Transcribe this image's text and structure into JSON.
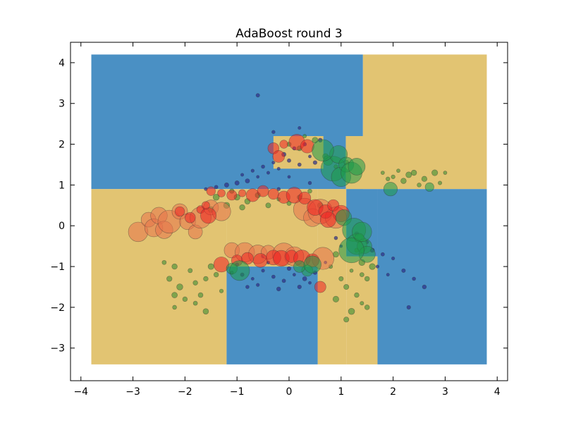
{
  "chart_data": {
    "type": "scatter",
    "title": "AdaBoost round 3",
    "xlabel": "",
    "ylabel": "",
    "xlim": [
      -4.2,
      4.2
    ],
    "ylim": [
      -3.8,
      4.5
    ],
    "xticks": [
      -4,
      -3,
      -2,
      -1,
      0,
      1,
      2,
      3,
      4
    ],
    "yticks": [
      -3,
      -2,
      -1,
      0,
      1,
      2,
      3,
      4
    ],
    "xtick_labels": [
      "−4",
      "−3",
      "−2",
      "−1",
      "0",
      "1",
      "2",
      "3",
      "4"
    ],
    "ytick_labels": [
      "−3",
      "−2",
      "−1",
      "0",
      "1",
      "2",
      "3",
      "4"
    ],
    "grid": false,
    "decision_regions": {
      "extent": {
        "x": [
          -3.8,
          3.8
        ],
        "y": [
          -3.4,
          4.2
        ]
      },
      "colors": {
        "blue": "#4a90c4",
        "yellow": "#e2c472"
      },
      "rects": [
        {
          "class": "blue",
          "x": [
            -3.8,
            1.42
          ],
          "y": [
            0.9,
            4.2
          ]
        },
        {
          "class": "yellow",
          "x": [
            1.42,
            3.8
          ],
          "y": [
            2.2,
            4.2
          ]
        },
        {
          "class": "yellow",
          "x": [
            1.09,
            3.8
          ],
          "y": [
            0.9,
            2.2
          ]
        },
        {
          "class": "yellow",
          "x": [
            -0.3,
            0.66
          ],
          "y": [
            1.4,
            2.2
          ]
        },
        {
          "class": "yellow",
          "x": [
            -3.8,
            -1.2
          ],
          "y": [
            -3.4,
            0.9
          ]
        },
        {
          "class": "yellow",
          "x": [
            -1.2,
            0.55
          ],
          "y": [
            -1.0,
            0.9
          ]
        },
        {
          "class": "yellow",
          "x": [
            0.55,
            1.1
          ],
          "y": [
            -3.4,
            0.9
          ]
        },
        {
          "class": "blue",
          "x": [
            -1.2,
            0.55
          ],
          "y": [
            -3.4,
            -1.0
          ]
        },
        {
          "class": "yellow",
          "x": [
            1.1,
            1.7
          ],
          "y": [
            -3.4,
            -0.75
          ]
        },
        {
          "class": "blue",
          "x": [
            1.7,
            3.8
          ],
          "y": [
            -3.4,
            0.9
          ]
        },
        {
          "class": "blue",
          "x": [
            1.1,
            1.7
          ],
          "y": [
            -0.75,
            0.9
          ]
        }
      ]
    },
    "series": [
      {
        "name": "",
        "color": "#2b2d8a",
        "points": [
          [
            -1.1,
            -1.15
          ],
          [
            -0.9,
            -1.2
          ],
          [
            -0.7,
            -1.3
          ],
          [
            -0.5,
            -1.1
          ],
          [
            -0.3,
            -1.25
          ],
          [
            -0.1,
            -1.35
          ],
          [
            0.1,
            -1.2
          ],
          [
            0.3,
            -1.3
          ],
          [
            0.5,
            -1.15
          ],
          [
            -0.8,
            -1.5
          ],
          [
            -0.6,
            -1.45
          ],
          [
            -0.2,
            -1.55
          ],
          [
            0.2,
            -1.5
          ],
          [
            0.4,
            -1.4
          ],
          [
            -1.0,
            -0.95
          ],
          [
            -0.4,
            -0.9
          ],
          [
            0.0,
            -1.05
          ],
          [
            -0.2,
            1.4
          ],
          [
            0.0,
            1.6
          ],
          [
            0.2,
            1.5
          ],
          [
            -0.4,
            1.3
          ],
          [
            -0.6,
            1.2
          ],
          [
            -0.8,
            1.1
          ],
          [
            -1.0,
            1.05
          ],
          [
            0.4,
            1.7
          ],
          [
            0.1,
            1.9
          ],
          [
            -0.1,
            1.75
          ],
          [
            -0.3,
            1.55
          ],
          [
            -0.5,
            1.45
          ],
          [
            0.3,
            2.0
          ],
          [
            0.5,
            1.55
          ],
          [
            -0.7,
            1.35
          ],
          [
            -0.9,
            1.25
          ],
          [
            -1.2,
            1.0
          ],
          [
            -1.4,
            0.95
          ],
          [
            -1.6,
            0.9
          ],
          [
            -0.6,
            3.2
          ],
          [
            -0.3,
            2.3
          ],
          [
            0.2,
            2.4
          ],
          [
            0.6,
            2.1
          ],
          [
            -0.2,
            0.9
          ],
          [
            0.4,
            1.05
          ],
          [
            0.0,
            1.2
          ],
          [
            1.3,
            -0.2
          ],
          [
            1.5,
            -0.4
          ],
          [
            1.6,
            -0.6
          ],
          [
            1.8,
            -0.7
          ],
          [
            2.0,
            -0.8
          ],
          [
            2.2,
            -1.1
          ],
          [
            2.4,
            -1.3
          ],
          [
            2.6,
            -1.5
          ],
          [
            2.3,
            -2.0
          ],
          [
            1.9,
            -1.2
          ],
          [
            1.7,
            -1.0
          ],
          [
            -0.5,
            -0.75
          ],
          [
            0.7,
            -0.9
          ],
          [
            1.0,
            -0.5
          ],
          [
            0.9,
            -0.3
          ]
        ]
      },
      {
        "name": "",
        "color": "#2e8b2e",
        "points": [
          [
            -2.2,
            -1.0
          ],
          [
            -2.3,
            -1.3
          ],
          [
            -2.1,
            -1.5
          ],
          [
            -1.9,
            -1.1
          ],
          [
            -1.8,
            -1.4
          ],
          [
            -1.7,
            -1.7
          ],
          [
            -1.6,
            -1.3
          ],
          [
            -1.5,
            -1.0
          ],
          [
            -1.4,
            -1.2
          ],
          [
            -2.0,
            -1.8
          ],
          [
            -1.8,
            -1.9
          ],
          [
            -2.2,
            -2.0
          ],
          [
            -1.6,
            -2.1
          ],
          [
            -1.3,
            -1.6
          ],
          [
            -2.4,
            -0.9
          ],
          [
            -2.2,
            -1.7
          ],
          [
            -1.5,
            0.4
          ],
          [
            -1.4,
            0.7
          ],
          [
            -1.2,
            0.5
          ],
          [
            -1.0,
            0.7
          ],
          [
            -0.8,
            0.6
          ],
          [
            -0.6,
            0.75
          ],
          [
            -0.4,
            0.5
          ],
          [
            -0.2,
            0.65
          ],
          [
            0.0,
            0.55
          ],
          [
            0.2,
            0.7
          ],
          [
            0.4,
            0.85
          ],
          [
            -1.1,
            0.85
          ],
          [
            -0.9,
            0.45
          ],
          [
            0.6,
            0.5
          ],
          [
            1.3,
            -0.6
          ],
          [
            1.4,
            -0.9
          ],
          [
            1.2,
            -1.1
          ],
          [
            1.0,
            -1.3
          ],
          [
            1.1,
            -1.5
          ],
          [
            1.3,
            -1.7
          ],
          [
            1.4,
            -1.9
          ],
          [
            1.2,
            -2.1
          ],
          [
            1.5,
            -1.3
          ],
          [
            0.9,
            -1.8
          ],
          [
            1.1,
            -2.3
          ],
          [
            1.5,
            -2.0
          ],
          [
            0.8,
            -1.0
          ],
          [
            0.9,
            -0.7
          ],
          [
            1.6,
            -1.0
          ],
          [
            1.4,
            -1.2
          ],
          [
            1.8,
            1.3
          ],
          [
            2.0,
            1.2
          ],
          [
            2.2,
            1.1
          ],
          [
            2.4,
            1.3
          ],
          [
            2.6,
            1.15
          ],
          [
            2.8,
            1.3
          ],
          [
            2.5,
            1.0
          ],
          [
            2.3,
            1.25
          ],
          [
            1.9,
            1.15
          ],
          [
            2.1,
            1.35
          ],
          [
            2.9,
            1.05
          ],
          [
            3.0,
            1.3
          ],
          [
            0.2,
            1.9
          ],
          [
            0.5,
            2.1
          ],
          [
            0.7,
            1.7
          ],
          [
            0.9,
            1.45
          ],
          [
            1.1,
            1.55
          ],
          [
            0.3,
            2.2
          ],
          [
            0.0,
            2.0
          ]
        ]
      },
      {
        "name": "",
        "color": "#e8734a",
        "points": [
          [
            -2.9,
            -0.15
          ],
          [
            -2.7,
            0.15
          ],
          [
            -2.6,
            -0.05
          ],
          [
            -2.5,
            0.25
          ],
          [
            -2.4,
            -0.1
          ],
          [
            -2.3,
            0.1
          ],
          [
            -2.1,
            0.35
          ],
          [
            -1.95,
            0.1
          ],
          [
            -1.8,
            -0.15
          ],
          [
            -1.7,
            0.2
          ],
          [
            -1.5,
            0.45
          ],
          [
            -1.3,
            0.35
          ],
          [
            -1.1,
            -0.6
          ],
          [
            -0.85,
            -0.65
          ],
          [
            -0.6,
            -0.7
          ],
          [
            -0.4,
            -0.65
          ],
          [
            -0.1,
            -0.7
          ],
          [
            0.1,
            -0.75
          ],
          [
            0.3,
            0.4
          ],
          [
            0.45,
            0.2
          ],
          [
            0.6,
            0.35
          ],
          [
            0.65,
            -0.8
          ],
          [
            0.9,
            0.2
          ]
        ]
      },
      {
        "name": "",
        "color": "#ee2222",
        "points": [
          [
            -2.1,
            0.35
          ],
          [
            -1.9,
            0.2
          ],
          [
            -1.7,
            0.4
          ],
          [
            -1.55,
            0.25
          ],
          [
            -1.6,
            0.5
          ],
          [
            -1.3,
            0.8
          ],
          [
            -1.5,
            0.85
          ],
          [
            -1.1,
            0.75
          ],
          [
            -0.9,
            0.8
          ],
          [
            -0.7,
            0.75
          ],
          [
            -0.5,
            0.85
          ],
          [
            -0.3,
            0.78
          ],
          [
            -0.1,
            0.7
          ],
          [
            0.1,
            0.75
          ],
          [
            0.3,
            0.68
          ],
          [
            -0.3,
            1.9
          ],
          [
            -0.1,
            2.0
          ],
          [
            0.15,
            2.05
          ],
          [
            0.35,
            1.95
          ],
          [
            -0.2,
            1.7
          ],
          [
            0.5,
            0.45
          ],
          [
            0.7,
            0.35
          ],
          [
            0.85,
            0.5
          ],
          [
            1.0,
            0.3
          ],
          [
            0.75,
            0.15
          ],
          [
            -1.0,
            -0.85
          ],
          [
            -0.8,
            -0.8
          ],
          [
            -0.55,
            -0.85
          ],
          [
            -0.3,
            -0.78
          ],
          [
            -0.15,
            -0.8
          ],
          [
            0.05,
            -0.75
          ],
          [
            0.25,
            -0.8
          ],
          [
            0.45,
            -0.85
          ],
          [
            -1.3,
            -0.95
          ],
          [
            0.6,
            -1.5
          ]
        ]
      },
      {
        "name": "",
        "color": "#1f9a4a",
        "points": [
          [
            0.75,
            1.6
          ],
          [
            0.85,
            1.4
          ],
          [
            0.95,
            1.75
          ],
          [
            1.0,
            1.2
          ],
          [
            1.1,
            1.5
          ],
          [
            1.2,
            1.3
          ],
          [
            0.65,
            1.85
          ],
          [
            1.3,
            1.45
          ],
          [
            1.05,
            0.2
          ],
          [
            1.25,
            -0.1
          ],
          [
            1.3,
            -0.45
          ],
          [
            1.35,
            -0.3
          ],
          [
            1.45,
            -0.5
          ],
          [
            1.5,
            -0.7
          ],
          [
            1.2,
            -0.6
          ],
          [
            1.4,
            -0.15
          ],
          [
            -1.1,
            -1.05
          ],
          [
            -0.95,
            -1.1
          ],
          [
            0.35,
            -1.1
          ],
          [
            0.2,
            -1.0
          ],
          [
            0.45,
            -0.95
          ],
          [
            1.95,
            0.9
          ],
          [
            2.7,
            0.95
          ]
        ]
      }
    ]
  }
}
